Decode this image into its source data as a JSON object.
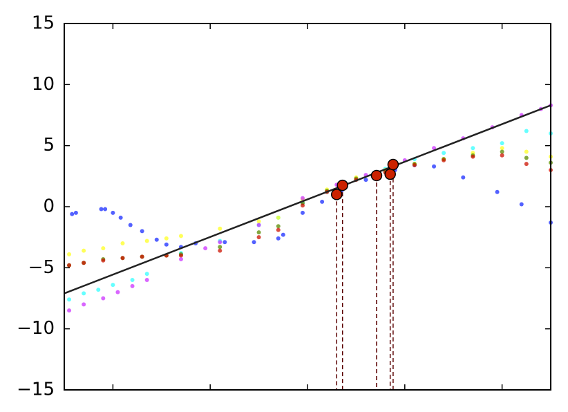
{
  "chart_data": {
    "type": "scatter",
    "xlim": [
      0,
      5
    ],
    "xticks": [
      0.5,
      1.5,
      2.5,
      3.5,
      4.5
    ],
    "ylim": [
      -15,
      15
    ],
    "yticks": [
      {
        "value": -15,
        "label": "−15"
      },
      {
        "value": -10,
        "label": "−10"
      },
      {
        "value": -5,
        "label": "−5"
      },
      0,
      5,
      10,
      15
    ],
    "series": [
      {
        "color": "#1a2cff",
        "x": [
          0.08,
          0.12,
          0.38,
          0.42,
          0.5,
          0.58,
          0.68,
          0.8,
          0.95,
          1.05,
          1.2,
          1.35,
          1.65,
          1.95,
          2.2,
          2.25,
          2.45,
          2.65,
          2.85,
          3.1,
          3.4,
          3.6,
          3.8,
          4.1,
          4.45,
          4.7,
          5.0
        ],
        "values": [
          -0.6,
          -0.5,
          -0.2,
          -0.2,
          -0.5,
          -0.9,
          -1.5,
          -2.0,
          -2.7,
          -3.1,
          -3.3,
          -3.0,
          -2.9,
          -2.9,
          -2.6,
          -2.3,
          -0.5,
          0.4,
          1.3,
          2.2,
          3.0,
          3.4,
          3.3,
          2.4,
          1.2,
          0.2,
          -1.3
        ]
      },
      {
        "color": "#33ffff",
        "x": [
          0.05,
          0.2,
          0.35,
          0.5,
          0.7,
          0.85,
          1.2,
          1.6,
          2.0,
          2.2,
          2.45,
          2.7,
          3.0,
          3.3,
          3.6,
          3.9,
          4.2,
          4.5,
          4.75,
          5.0
        ],
        "values": [
          -7.6,
          -7.1,
          -6.8,
          -6.4,
          -6.0,
          -5.5,
          -3.8,
          -2.8,
          -1.5,
          -0.9,
          0.3,
          1.2,
          2.2,
          3.1,
          3.9,
          4.4,
          4.8,
          5.2,
          6.2,
          6.0
        ]
      },
      {
        "color": "#ffff22",
        "x": [
          0.05,
          0.2,
          0.4,
          0.6,
          0.85,
          1.05,
          1.2,
          1.6,
          2.0,
          2.2,
          2.45,
          2.7,
          3.0,
          3.3,
          3.6,
          3.9,
          4.2,
          4.5,
          4.75,
          5.0
        ],
        "values": [
          -3.9,
          -3.6,
          -3.4,
          -3.0,
          -2.8,
          -2.6,
          -2.4,
          -1.8,
          -1.2,
          -0.9,
          0.6,
          1.4,
          2.4,
          3.0,
          3.5,
          3.9,
          4.4,
          4.8,
          4.5,
          4.1
        ]
      },
      {
        "color": "#5a8a00",
        "x": [
          0.05,
          0.2,
          0.4,
          0.6,
          0.8,
          1.05,
          1.2,
          1.6,
          2.0,
          2.2,
          2.45,
          2.7,
          3.0,
          3.3,
          3.6,
          3.9,
          4.2,
          4.5,
          4.75,
          5.0
        ],
        "values": [
          -4.8,
          -4.6,
          -4.3,
          -4.2,
          -4.1,
          -4.0,
          -3.9,
          -3.3,
          -2.1,
          -1.6,
          0.3,
          1.3,
          2.3,
          2.9,
          3.5,
          3.9,
          4.2,
          4.5,
          4.0,
          3.6
        ]
      },
      {
        "color": "#cc1100",
        "x": [
          0.05,
          0.2,
          0.4,
          0.6,
          0.8,
          1.05,
          1.2,
          1.6,
          2.0,
          2.2,
          2.45,
          2.7,
          3.0,
          3.3,
          3.6,
          3.9,
          4.2,
          4.5,
          4.75,
          5.0
        ],
        "values": [
          -4.8,
          -4.6,
          -4.4,
          -4.2,
          -4.1,
          -4.0,
          -4.0,
          -3.6,
          -2.5,
          -1.9,
          0.1,
          1.2,
          2.2,
          2.8,
          3.4,
          3.8,
          4.1,
          4.2,
          3.5,
          3.0
        ]
      },
      {
        "color": "#cc33ff",
        "x": [
          0.05,
          0.2,
          0.4,
          0.55,
          0.7,
          0.85,
          1.2,
          1.45,
          1.6,
          2.0,
          2.45,
          2.8,
          3.1,
          3.5,
          3.8,
          4.1,
          4.4,
          4.7,
          4.9,
          5.0
        ],
        "values": [
          -8.5,
          -8.0,
          -7.5,
          -7.0,
          -6.5,
          -6.0,
          -4.3,
          -3.4,
          -2.9,
          -1.5,
          0.7,
          1.8,
          2.6,
          3.8,
          4.8,
          5.6,
          6.5,
          7.5,
          8.0,
          8.3
        ]
      }
    ],
    "fit_line": {
      "color": "#222222",
      "x": [
        0,
        5
      ],
      "values": [
        -7.1,
        8.3
      ]
    },
    "highlights": {
      "color": "#cc2200",
      "x": [
        2.8,
        2.86,
        3.21,
        3.35,
        3.38
      ],
      "values": [
        1.0,
        1.75,
        2.55,
        2.66,
        3.45
      ]
    }
  }
}
